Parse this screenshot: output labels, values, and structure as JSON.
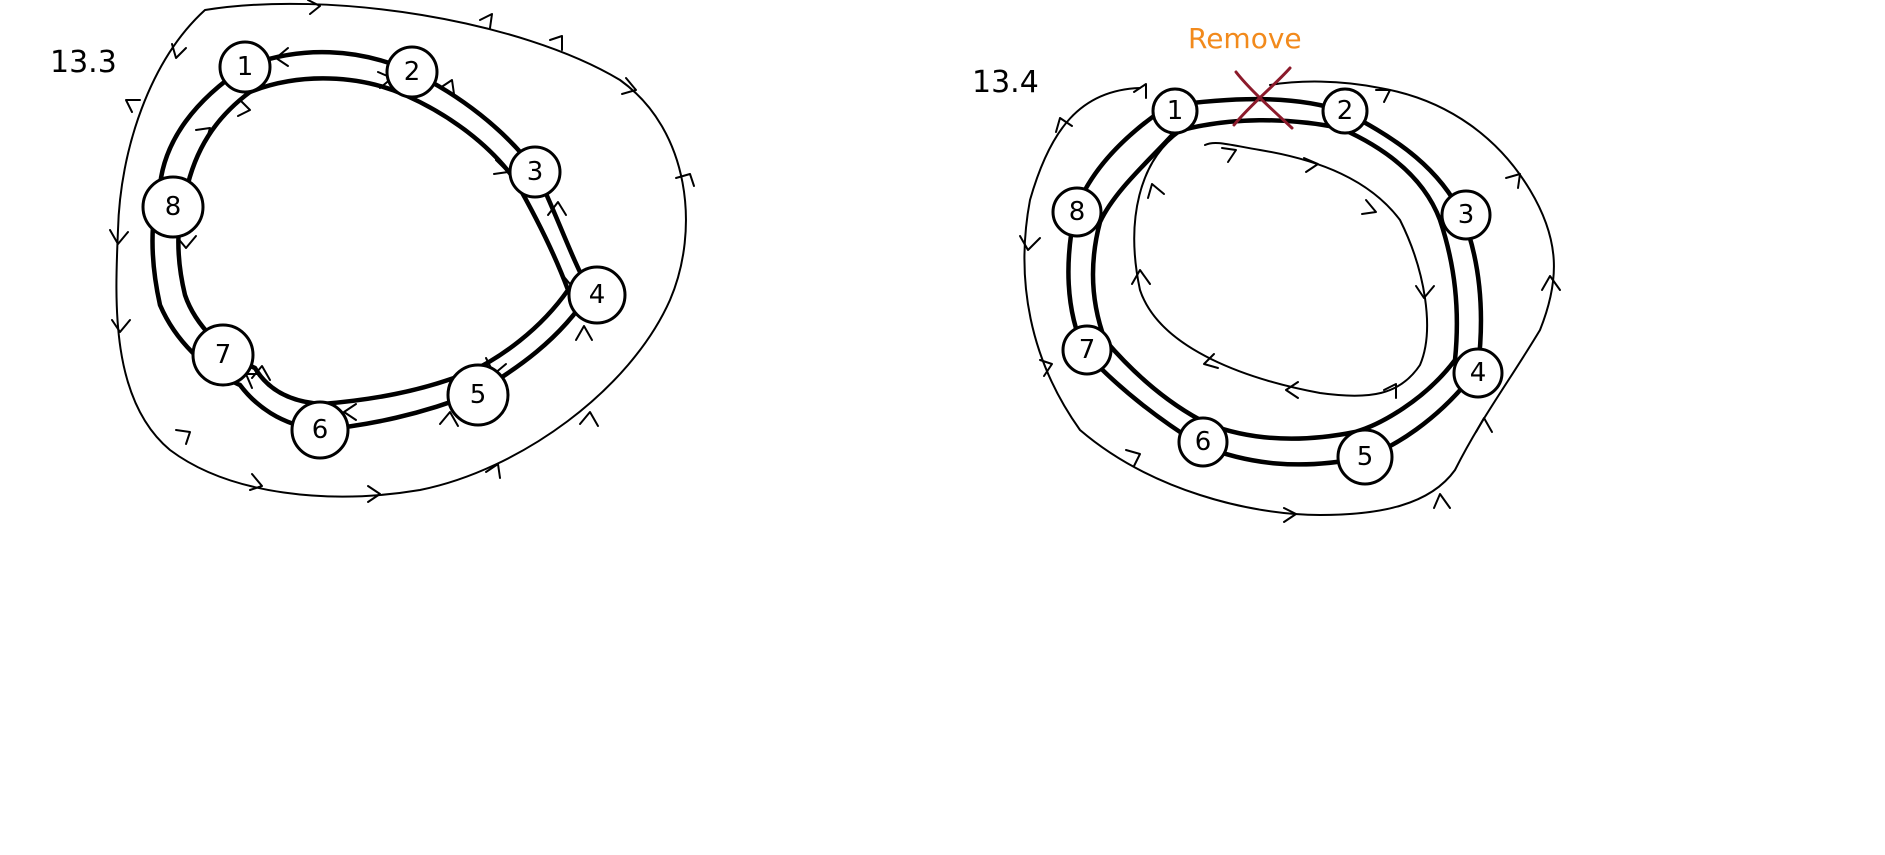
{
  "figures": [
    {
      "label": "13.3",
      "nodes": [
        "1",
        "2",
        "3",
        "4",
        "5",
        "6",
        "7",
        "8"
      ]
    },
    {
      "label": "13.4",
      "nodes": [
        "1",
        "2",
        "3",
        "4",
        "5",
        "6",
        "7",
        "8"
      ],
      "annotation": "Remove"
    }
  ],
  "colors": {
    "ink": "#000000",
    "annotation": "#f28a1c",
    "cross": "#8b1a2b"
  }
}
